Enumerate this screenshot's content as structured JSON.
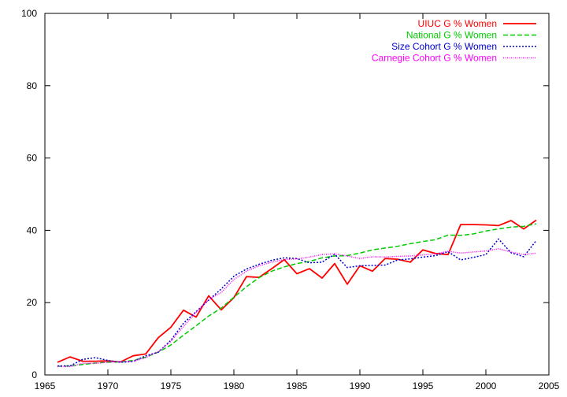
{
  "chart_data": {
    "type": "line",
    "title": "",
    "xlabel": "",
    "ylabel": "",
    "xlim": [
      1965,
      2005
    ],
    "ylim": [
      0,
      100
    ],
    "x_ticks": [
      1965,
      1970,
      1975,
      1980,
      1985,
      1990,
      1995,
      2000,
      2005
    ],
    "y_ticks": [
      0,
      20,
      40,
      60,
      80,
      100
    ],
    "grid": false,
    "legend_position": "top-right",
    "x": [
      1966,
      1967,
      1968,
      1969,
      1970,
      1971,
      1972,
      1973,
      1974,
      1975,
      1976,
      1977,
      1978,
      1979,
      1980,
      1981,
      1982,
      1983,
      1984,
      1985,
      1986,
      1987,
      1988,
      1989,
      1990,
      1991,
      1992,
      1993,
      1994,
      1995,
      1996,
      1997,
      1998,
      1999,
      2000,
      2001,
      2002,
      2003,
      2004
    ],
    "series": [
      {
        "name": "UIUC G % Women",
        "color": "#ff0000",
        "style": "solid",
        "values": [
          3.5,
          5.0,
          3.8,
          3.8,
          3.9,
          3.6,
          5.3,
          5.8,
          10.3,
          13.2,
          17.9,
          16.0,
          21.9,
          18.0,
          21.4,
          27.2,
          27.0,
          29.4,
          31.9,
          28.0,
          29.4,
          26.8,
          30.8,
          25.1,
          30.2,
          28.7,
          32.2,
          32.0,
          31.2,
          34.6,
          33.6,
          33.3,
          41.6,
          41.6,
          41.5,
          41.3,
          42.7,
          40.4,
          42.8
        ]
      },
      {
        "name": "National G % Women",
        "color": "#00cc00",
        "style": "dashed",
        "values": [
          2.4,
          2.5,
          2.9,
          3.3,
          3.5,
          3.6,
          4.0,
          4.9,
          6.3,
          8.3,
          11.0,
          13.6,
          16.3,
          18.5,
          21.5,
          24.4,
          26.9,
          28.7,
          29.9,
          30.8,
          31.4,
          32.4,
          32.9,
          33.0,
          33.7,
          34.6,
          35.1,
          35.6,
          36.3,
          36.9,
          37.4,
          38.7,
          38.6,
          39.0,
          39.8,
          40.4,
          40.9,
          41.1,
          41.8
        ]
      },
      {
        "name": "Size Cohort G % Women",
        "color": "#0000cc",
        "style": "dotted",
        "values": [
          2.5,
          2.5,
          4.3,
          4.8,
          4.0,
          3.5,
          3.7,
          5.3,
          6.3,
          9.6,
          14.3,
          17.5,
          20.7,
          23.8,
          27.3,
          29.3,
          30.6,
          31.7,
          32.4,
          32.2,
          31.0,
          31.2,
          33.4,
          29.7,
          30.2,
          30.3,
          30.4,
          31.8,
          32.1,
          32.6,
          33.0,
          34.1,
          31.8,
          32.5,
          33.3,
          37.6,
          33.8,
          32.7,
          37.2
        ]
      },
      {
        "name": "Carnegie Cohort G % Women",
        "color": "#ff00ff",
        "style": "dotted-fine",
        "values": [
          2.3,
          2.3,
          3.2,
          3.2,
          3.5,
          3.7,
          3.8,
          4.8,
          6.5,
          9.3,
          13.4,
          17.3,
          20.8,
          22.8,
          26.4,
          28.7,
          30.2,
          31.2,
          31.9,
          32.1,
          32.6,
          33.3,
          33.5,
          32.9,
          32.2,
          32.7,
          32.6,
          32.8,
          32.9,
          33.2,
          33.5,
          34.2,
          33.7,
          34.0,
          34.3,
          34.9,
          34.0,
          33.3,
          33.7
        ]
      }
    ]
  }
}
